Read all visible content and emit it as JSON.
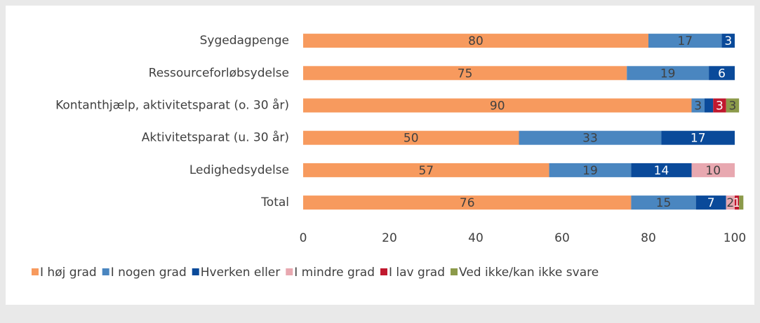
{
  "chart_data": {
    "type": "bar",
    "orientation": "horizontal",
    "stacked": true,
    "categories": [
      "Sygedagpenge",
      "Ressourceforløbsydelse",
      "Kontanthjælp, aktivitetsparat (o. 30 år)",
      "Aktivitetsparat (u. 30 år)",
      "Ledighedsydelse",
      "Total"
    ],
    "series": [
      {
        "name": "I høj grad",
        "color": "#f79a5e",
        "label_color": "#404040",
        "values": [
          80,
          75,
          90,
          50,
          57,
          76
        ]
      },
      {
        "name": "I nogen grad",
        "color": "#4a86c0",
        "label_color": "#404040",
        "values": [
          17,
          19,
          3,
          33,
          19,
          15
        ]
      },
      {
        "name": "Hverken eller",
        "color": "#0a4a9a",
        "label_color": "#ffffff",
        "values": [
          3,
          6,
          2,
          17,
          14,
          7
        ],
        "value_labels": [
          "3",
          "6",
          null,
          "17",
          "14",
          "7"
        ]
      },
      {
        "name": "I mindre grad",
        "color": "#e8a8b0",
        "label_color": "#404040",
        "values": [
          null,
          null,
          null,
          null,
          10,
          2
        ]
      },
      {
        "name": "I lav grad",
        "color": "#c0182e",
        "label_color": "#ffffff",
        "values": [
          null,
          null,
          3,
          null,
          null,
          1
        ]
      },
      {
        "name": "Ved ikke/kan ikke svare",
        "color": "#8c9a4a",
        "label_color": "#404040",
        "values": [
          null,
          null,
          3,
          null,
          null,
          1
        ],
        "value_labels": [
          null,
          null,
          "3",
          null,
          null,
          null
        ]
      }
    ],
    "xlim": [
      0,
      100
    ],
    "xticks": [
      0,
      20,
      40,
      60,
      80,
      100
    ],
    "legend": "bottom"
  }
}
